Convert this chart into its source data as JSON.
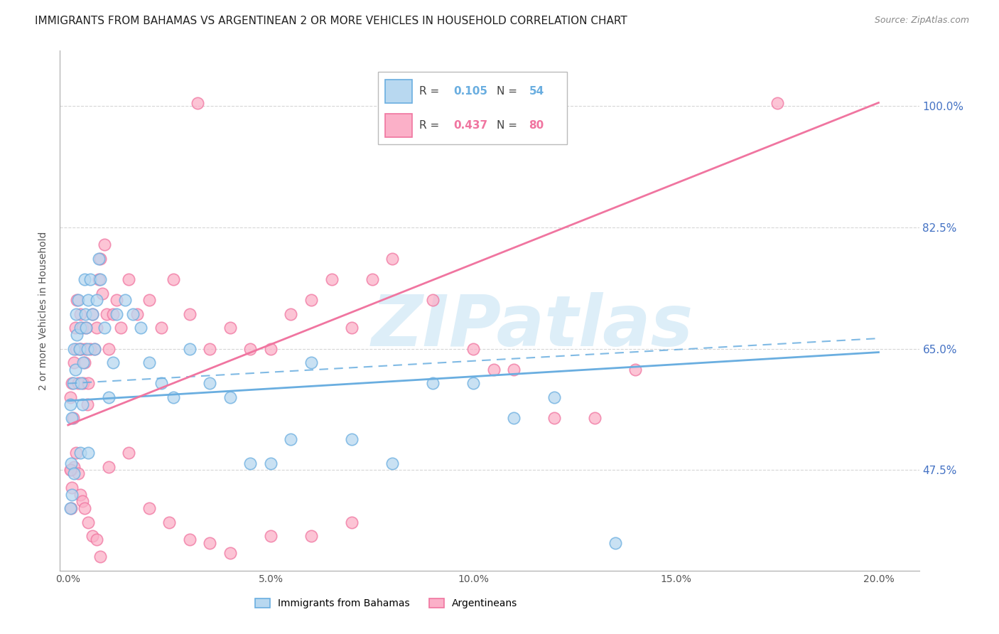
{
  "title": "IMMIGRANTS FROM BAHAMAS VS ARGENTINEAN 2 OR MORE VEHICLES IN HOUSEHOLD CORRELATION CHART",
  "source": "Source: ZipAtlas.com",
  "ylabel": "2 or more Vehicles in Household",
  "xlabel_ticks": [
    "0.0%",
    "5.0%",
    "10.0%",
    "15.0%",
    "20.0%"
  ],
  "xlabel_vals": [
    0.0,
    5.0,
    10.0,
    15.0,
    20.0
  ],
  "ylabel_ticks": [
    "47.5%",
    "65.0%",
    "82.5%",
    "100.0%"
  ],
  "ylabel_vals": [
    47.5,
    65.0,
    82.5,
    100.0
  ],
  "ylim": [
    33.0,
    108.0
  ],
  "xlim": [
    -0.2,
    21.0
  ],
  "blue_color": "#6aaee0",
  "pink_color": "#f075a0",
  "grid_color": "#cccccc",
  "background_color": "#ffffff",
  "title_fontsize": 11,
  "source_fontsize": 9,
  "watermark_color": "#ddeef8",
  "watermark_fontsize": 72,
  "blue_R": "0.105",
  "blue_N": "54",
  "pink_R": "0.437",
  "pink_N": "80",
  "blue_trend_x0": 0.0,
  "blue_trend_y0": 57.5,
  "blue_trend_x1": 20.0,
  "blue_trend_y1": 64.5,
  "blue_dash_x0": 0.0,
  "blue_dash_y0": 60.0,
  "blue_dash_x1": 20.0,
  "blue_dash_y1": 66.5,
  "pink_trend_x0": 0.0,
  "pink_trend_y0": 54.0,
  "pink_trend_x1": 20.0,
  "pink_trend_y1": 100.5,
  "blue_scatter_x": [
    0.05,
    0.08,
    0.1,
    0.12,
    0.15,
    0.18,
    0.2,
    0.22,
    0.25,
    0.28,
    0.3,
    0.32,
    0.35,
    0.38,
    0.4,
    0.42,
    0.45,
    0.48,
    0.5,
    0.55,
    0.6,
    0.65,
    0.7,
    0.75,
    0.8,
    0.9,
    1.0,
    1.1,
    1.2,
    1.4,
    1.6,
    1.8,
    2.0,
    2.3,
    2.6,
    3.0,
    3.5,
    4.0,
    4.5,
    5.0,
    5.5,
    6.0,
    7.0,
    8.0,
    9.0,
    10.0,
    11.0,
    12.0,
    13.5,
    0.05,
    0.1,
    0.15,
    0.3,
    0.5
  ],
  "blue_scatter_y": [
    57.0,
    48.5,
    55.0,
    60.0,
    65.0,
    62.0,
    70.0,
    67.0,
    72.0,
    65.0,
    68.0,
    60.0,
    57.0,
    63.0,
    75.0,
    70.0,
    68.0,
    65.0,
    72.0,
    75.0,
    70.0,
    65.0,
    72.0,
    78.0,
    75.0,
    68.0,
    58.0,
    63.0,
    70.0,
    72.0,
    70.0,
    68.0,
    63.0,
    60.0,
    58.0,
    65.0,
    60.0,
    58.0,
    48.5,
    48.5,
    52.0,
    63.0,
    52.0,
    48.5,
    60.0,
    60.0,
    55.0,
    58.0,
    37.0,
    42.0,
    44.0,
    47.0,
    50.0,
    50.0
  ],
  "pink_scatter_x": [
    0.05,
    0.07,
    0.1,
    0.12,
    0.15,
    0.18,
    0.2,
    0.22,
    0.25,
    0.28,
    0.3,
    0.32,
    0.35,
    0.38,
    0.4,
    0.42,
    0.45,
    0.48,
    0.5,
    0.55,
    0.6,
    0.65,
    0.7,
    0.75,
    0.8,
    0.85,
    0.9,
    0.95,
    1.0,
    1.1,
    1.2,
    1.3,
    1.5,
    1.7,
    2.0,
    2.3,
    2.6,
    3.0,
    3.5,
    4.0,
    4.5,
    5.0,
    5.5,
    6.0,
    6.5,
    7.0,
    7.5,
    8.0,
    9.0,
    10.0,
    11.0,
    12.0,
    13.0,
    14.0,
    17.5,
    0.07,
    0.1,
    0.15,
    0.2,
    0.25,
    0.3,
    0.35,
    0.4,
    0.5,
    0.6,
    0.7,
    0.8,
    1.0,
    1.5,
    2.0,
    2.5,
    3.0,
    3.5,
    4.0,
    5.0,
    6.0,
    7.0,
    3.2,
    10.5,
    0.05
  ],
  "pink_scatter_y": [
    58.0,
    47.5,
    60.0,
    55.0,
    63.0,
    68.0,
    65.0,
    72.0,
    60.0,
    65.0,
    70.0,
    65.0,
    68.0,
    60.0,
    63.0,
    65.0,
    68.0,
    57.0,
    60.0,
    65.0,
    70.0,
    65.0,
    68.0,
    75.0,
    78.0,
    73.0,
    80.0,
    70.0,
    65.0,
    70.0,
    72.0,
    68.0,
    75.0,
    70.0,
    72.0,
    68.0,
    75.0,
    70.0,
    65.0,
    68.0,
    65.0,
    65.0,
    70.0,
    72.0,
    75.0,
    68.0,
    75.0,
    78.0,
    72.0,
    65.0,
    62.0,
    55.0,
    55.0,
    62.0,
    100.5,
    42.0,
    45.0,
    48.0,
    50.0,
    47.0,
    44.0,
    43.0,
    42.0,
    40.0,
    38.0,
    37.5,
    35.0,
    48.0,
    50.0,
    42.0,
    40.0,
    37.5,
    37.0,
    35.5,
    38.0,
    38.0,
    40.0,
    100.5,
    62.0,
    47.5
  ]
}
